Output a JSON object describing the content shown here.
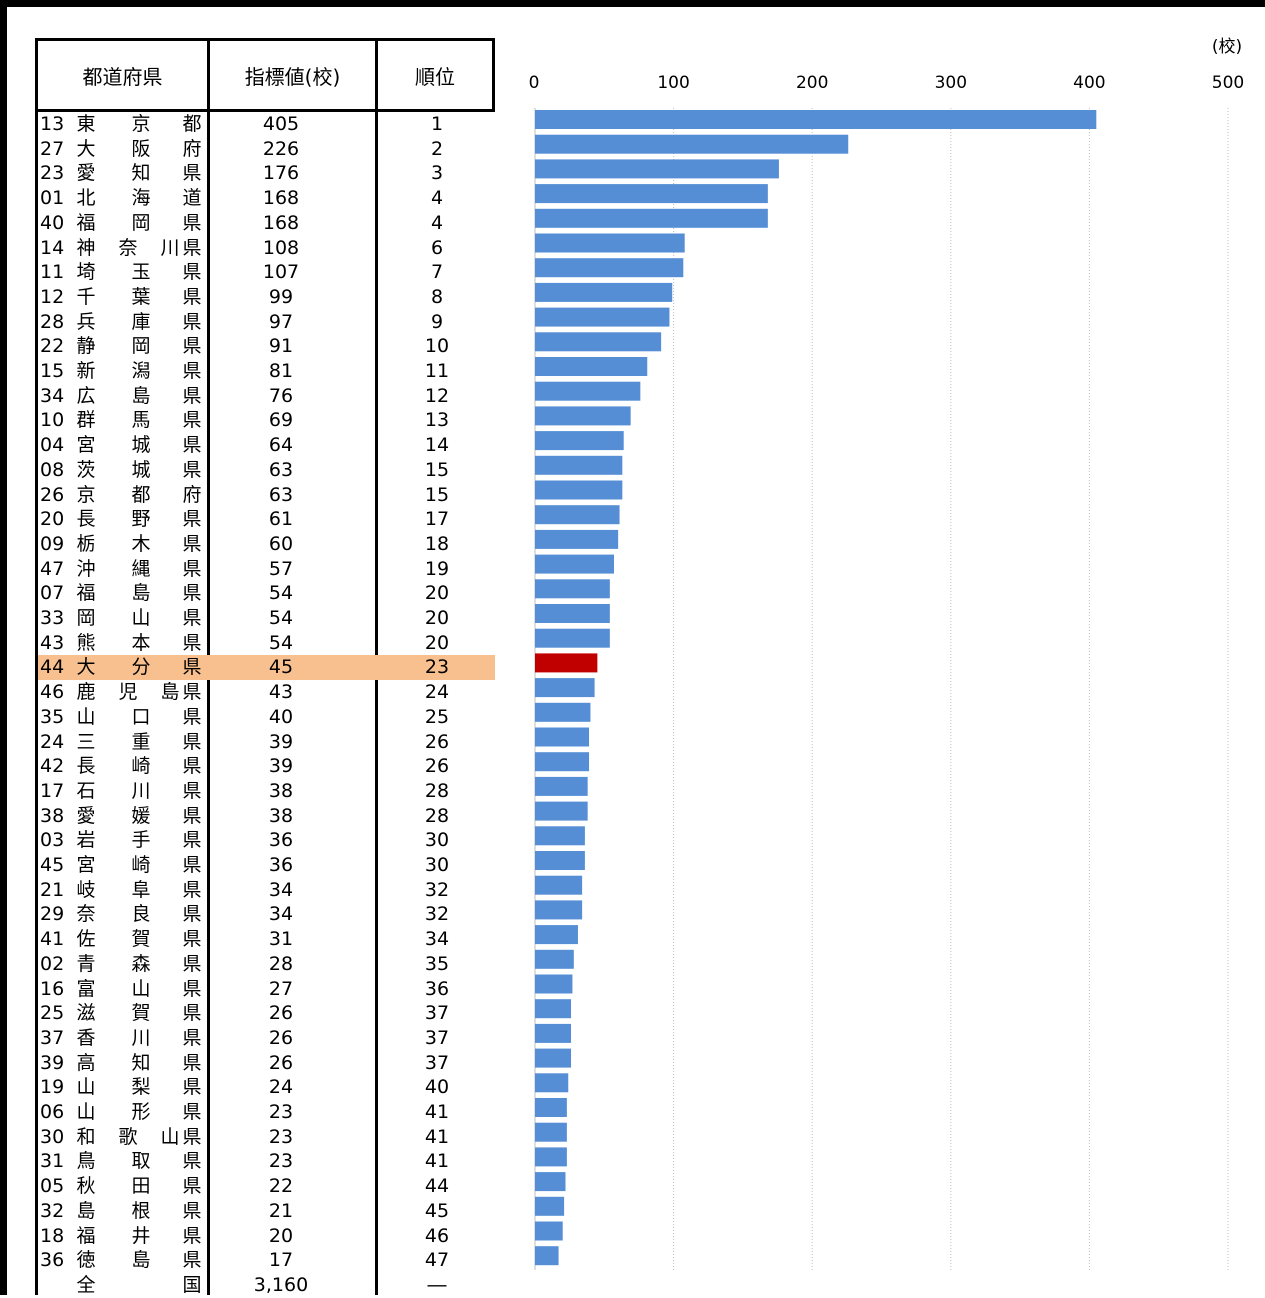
{
  "table": {
    "headers": {
      "prefecture": "都道府県",
      "value": "指標値(校)",
      "rank": "順位"
    },
    "highlight_color": "#f9c08f",
    "rows": [
      {
        "code": "13",
        "name": [
          "東",
          "京",
          "都"
        ],
        "value": "405",
        "rank": "1"
      },
      {
        "code": "27",
        "name": [
          "大",
          "阪",
          "府"
        ],
        "value": "226",
        "rank": "2"
      },
      {
        "code": "23",
        "name": [
          "愛",
          "知",
          "県"
        ],
        "value": "176",
        "rank": "3"
      },
      {
        "code": "01",
        "name": [
          "北",
          "海",
          "道"
        ],
        "value": "168",
        "rank": "4"
      },
      {
        "code": "40",
        "name": [
          "福",
          "岡",
          "県"
        ],
        "value": "168",
        "rank": "4"
      },
      {
        "code": "14",
        "name": [
          "神",
          "奈",
          "川",
          "県"
        ],
        "value": "108",
        "rank": "6"
      },
      {
        "code": "11",
        "name": [
          "埼",
          "玉",
          "県"
        ],
        "value": "107",
        "rank": "7"
      },
      {
        "code": "12",
        "name": [
          "千",
          "葉",
          "県"
        ],
        "value": "99",
        "rank": "8"
      },
      {
        "code": "28",
        "name": [
          "兵",
          "庫",
          "県"
        ],
        "value": "97",
        "rank": "9"
      },
      {
        "code": "22",
        "name": [
          "静",
          "岡",
          "県"
        ],
        "value": "91",
        "rank": "10"
      },
      {
        "code": "15",
        "name": [
          "新",
          "潟",
          "県"
        ],
        "value": "81",
        "rank": "11"
      },
      {
        "code": "34",
        "name": [
          "広",
          "島",
          "県"
        ],
        "value": "76",
        "rank": "12"
      },
      {
        "code": "10",
        "name": [
          "群",
          "馬",
          "県"
        ],
        "value": "69",
        "rank": "13"
      },
      {
        "code": "04",
        "name": [
          "宮",
          "城",
          "県"
        ],
        "value": "64",
        "rank": "14"
      },
      {
        "code": "08",
        "name": [
          "茨",
          "城",
          "県"
        ],
        "value": "63",
        "rank": "15"
      },
      {
        "code": "26",
        "name": [
          "京",
          "都",
          "府"
        ],
        "value": "63",
        "rank": "15"
      },
      {
        "code": "20",
        "name": [
          "長",
          "野",
          "県"
        ],
        "value": "61",
        "rank": "17"
      },
      {
        "code": "09",
        "name": [
          "栃",
          "木",
          "県"
        ],
        "value": "60",
        "rank": "18"
      },
      {
        "code": "47",
        "name": [
          "沖",
          "縄",
          "県"
        ],
        "value": "57",
        "rank": "19"
      },
      {
        "code": "07",
        "name": [
          "福",
          "島",
          "県"
        ],
        "value": "54",
        "rank": "20"
      },
      {
        "code": "33",
        "name": [
          "岡",
          "山",
          "県"
        ],
        "value": "54",
        "rank": "20"
      },
      {
        "code": "43",
        "name": [
          "熊",
          "本",
          "県"
        ],
        "value": "54",
        "rank": "20"
      },
      {
        "code": "44",
        "name": [
          "大",
          "分",
          "県"
        ],
        "value": "45",
        "rank": "23",
        "highlight": true
      },
      {
        "code": "46",
        "name": [
          "鹿",
          "児",
          "島",
          "県"
        ],
        "value": "43",
        "rank": "24"
      },
      {
        "code": "35",
        "name": [
          "山",
          "口",
          "県"
        ],
        "value": "40",
        "rank": "25"
      },
      {
        "code": "24",
        "name": [
          "三",
          "重",
          "県"
        ],
        "value": "39",
        "rank": "26"
      },
      {
        "code": "42",
        "name": [
          "長",
          "崎",
          "県"
        ],
        "value": "39",
        "rank": "26"
      },
      {
        "code": "17",
        "name": [
          "石",
          "川",
          "県"
        ],
        "value": "38",
        "rank": "28"
      },
      {
        "code": "38",
        "name": [
          "愛",
          "媛",
          "県"
        ],
        "value": "38",
        "rank": "28"
      },
      {
        "code": "03",
        "name": [
          "岩",
          "手",
          "県"
        ],
        "value": "36",
        "rank": "30"
      },
      {
        "code": "45",
        "name": [
          "宮",
          "崎",
          "県"
        ],
        "value": "36",
        "rank": "30"
      },
      {
        "code": "21",
        "name": [
          "岐",
          "阜",
          "県"
        ],
        "value": "34",
        "rank": "32"
      },
      {
        "code": "29",
        "name": [
          "奈",
          "良",
          "県"
        ],
        "value": "34",
        "rank": "32"
      },
      {
        "code": "41",
        "name": [
          "佐",
          "賀",
          "県"
        ],
        "value": "31",
        "rank": "34"
      },
      {
        "code": "02",
        "name": [
          "青",
          "森",
          "県"
        ],
        "value": "28",
        "rank": "35"
      },
      {
        "code": "16",
        "name": [
          "富",
          "山",
          "県"
        ],
        "value": "27",
        "rank": "36"
      },
      {
        "code": "25",
        "name": [
          "滋",
          "賀",
          "県"
        ],
        "value": "26",
        "rank": "37"
      },
      {
        "code": "37",
        "name": [
          "香",
          "川",
          "県"
        ],
        "value": "26",
        "rank": "37"
      },
      {
        "code": "39",
        "name": [
          "高",
          "知",
          "県"
        ],
        "value": "26",
        "rank": "37"
      },
      {
        "code": "19",
        "name": [
          "山",
          "梨",
          "県"
        ],
        "value": "24",
        "rank": "40"
      },
      {
        "code": "06",
        "name": [
          "山",
          "形",
          "県"
        ],
        "value": "23",
        "rank": "41"
      },
      {
        "code": "30",
        "name": [
          "和",
          "歌",
          "山",
          "県"
        ],
        "value": "23",
        "rank": "41"
      },
      {
        "code": "31",
        "name": [
          "鳥",
          "取",
          "県"
        ],
        "value": "23",
        "rank": "41"
      },
      {
        "code": "05",
        "name": [
          "秋",
          "田",
          "県"
        ],
        "value": "22",
        "rank": "44"
      },
      {
        "code": "32",
        "name": [
          "島",
          "根",
          "県"
        ],
        "value": "21",
        "rank": "45"
      },
      {
        "code": "18",
        "name": [
          "福",
          "井",
          "県"
        ],
        "value": "20",
        "rank": "46"
      },
      {
        "code": "36",
        "name": [
          "徳",
          "島",
          "県"
        ],
        "value": "17",
        "rank": "47"
      },
      {
        "code": "",
        "name": [
          "全",
          "国"
        ],
        "value": "3,160",
        "rank": "―"
      }
    ]
  },
  "chart_data": {
    "type": "bar",
    "orientation": "horizontal",
    "unit_label": "(校)",
    "xlim": [
      0,
      500
    ],
    "xticks": [
      "0",
      "100",
      "200",
      "300",
      "400",
      "500"
    ],
    "grid": "vertical dotted",
    "bar_color": "#558ed5",
    "highlight_color": "#c00000",
    "highlight_category": "大分県",
    "categories": [
      "東京都",
      "大阪府",
      "愛知県",
      "北海道",
      "福岡県",
      "神奈川県",
      "埼玉県",
      "千葉県",
      "兵庫県",
      "静岡県",
      "新潟県",
      "広島県",
      "群馬県",
      "宮城県",
      "茨城県",
      "京都府",
      "長野県",
      "栃木県",
      "沖縄県",
      "福島県",
      "岡山県",
      "熊本県",
      "大分県",
      "鹿児島県",
      "山口県",
      "三重県",
      "長崎県",
      "石川県",
      "愛媛県",
      "岩手県",
      "宮崎県",
      "岐阜県",
      "奈良県",
      "佐賀県",
      "青森県",
      "富山県",
      "滋賀県",
      "香川県",
      "高知県",
      "山梨県",
      "山形県",
      "和歌山県",
      "鳥取県",
      "秋田県",
      "島根県",
      "福井県",
      "徳島県"
    ],
    "values": [
      405,
      226,
      176,
      168,
      168,
      108,
      107,
      99,
      97,
      91,
      81,
      76,
      69,
      64,
      63,
      63,
      61,
      60,
      57,
      54,
      54,
      54,
      45,
      43,
      40,
      39,
      39,
      38,
      38,
      36,
      36,
      34,
      34,
      31,
      28,
      27,
      26,
      26,
      26,
      24,
      23,
      23,
      23,
      22,
      21,
      20,
      17
    ]
  }
}
